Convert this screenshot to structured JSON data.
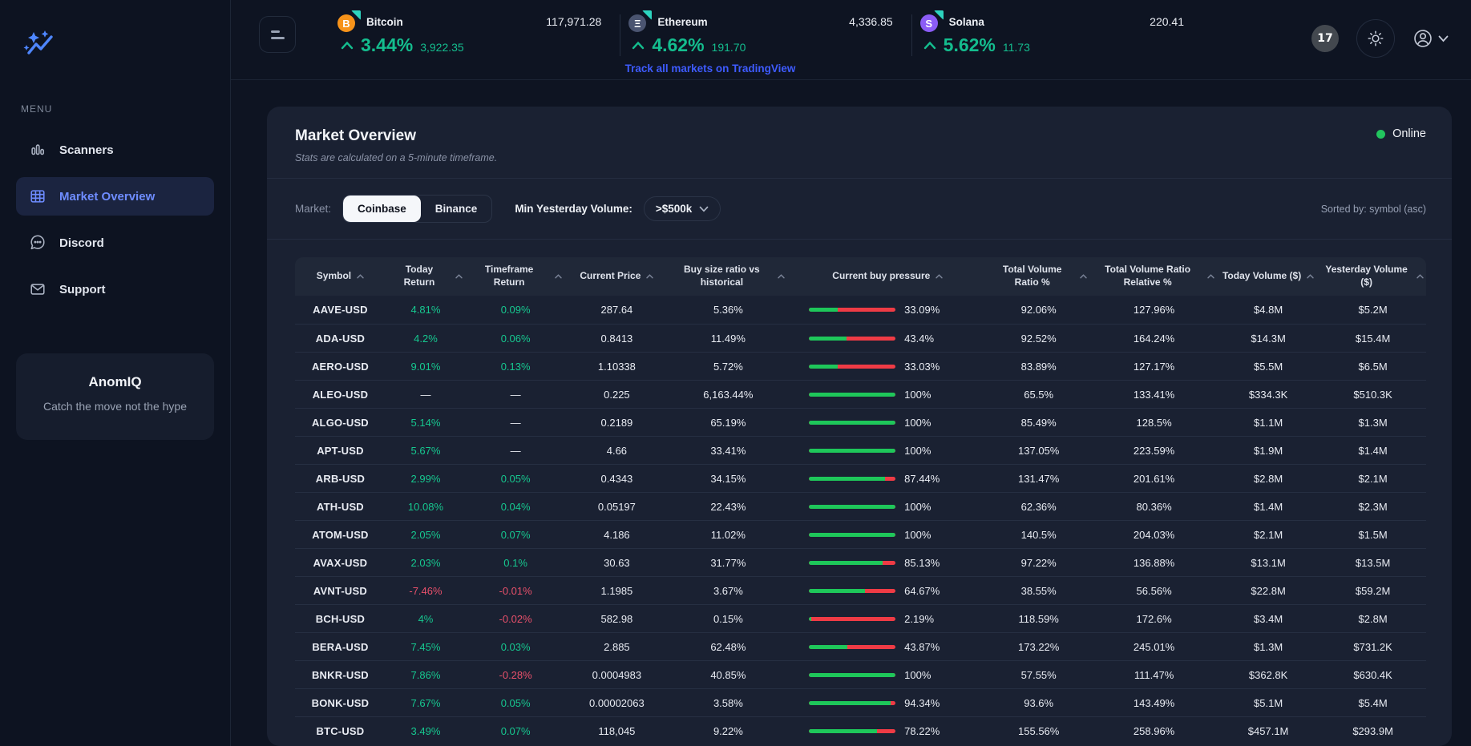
{
  "topbar": {
    "tickers": [
      {
        "name": "Bitcoin",
        "symbol_letter": "B",
        "icon_color": "#f7931a",
        "price": "117,971.28",
        "change_pct": "3.44%",
        "change_abs": "3,922.35"
      },
      {
        "name": "Ethereum",
        "symbol_letter": "Ξ",
        "icon_color": "#4a5470",
        "price": "4,336.85",
        "change_pct": "4.62%",
        "change_abs": "191.70"
      },
      {
        "name": "Solana",
        "symbol_letter": "S",
        "icon_color": "#8b5cf6",
        "price": "220.41",
        "change_pct": "5.62%",
        "change_abs": "11.73"
      }
    ],
    "link_label": "Track all markets on TradingView",
    "tv_badge_label": "17"
  },
  "sidebar": {
    "menu_label": "MENU",
    "items": [
      {
        "label": "Scanners",
        "icon": "bars-chart-icon",
        "active": false
      },
      {
        "label": "Market Overview",
        "icon": "grid-table-icon",
        "active": true
      },
      {
        "label": "Discord",
        "icon": "chat-bubble-icon",
        "active": false
      },
      {
        "label": "Support",
        "icon": "mail-icon",
        "active": false
      }
    ],
    "brand_card": {
      "title": "AnomIQ",
      "tagline": "Catch the move not the hype"
    }
  },
  "main": {
    "title": "Market Overview",
    "subtitle": "Stats are calculated on a 5-minute timeframe.",
    "status_label": "Online",
    "filters": {
      "market_label": "Market:",
      "market_options": [
        {
          "label": "Coinbase",
          "active": true
        },
        {
          "label": "Binance",
          "active": false
        }
      ],
      "volume_label": "Min Yesterday Volume:",
      "volume_value": ">$500k",
      "sorted_by": "Sorted by: symbol (asc)"
    },
    "table": {
      "columns": [
        "Symbol",
        "Today Return",
        "Timeframe Return",
        "Current Price",
        "Buy size ratio vs historical",
        "Current buy pressure",
        "Total Volume Ratio %",
        "Total Volume Ratio Relative %",
        "Today Volume ($)",
        "Yesterday Volume ($)"
      ],
      "rows": [
        {
          "symbol": "AAVE-USD",
          "today": "4.81%",
          "timeframe": "0.09%",
          "price": "287.64",
          "buy_size_ratio": "5.36%",
          "buy_pressure_pct": 33.09,
          "buy_pressure_label": "33.09%",
          "total_volume_ratio": "92.06%",
          "total_volume_ratio_relative": "127.96%",
          "today_volume": "$4.8M",
          "yesterday_volume": "$5.2M"
        },
        {
          "symbol": "ADA-USD",
          "today": "4.2%",
          "timeframe": "0.06%",
          "price": "0.8413",
          "buy_size_ratio": "11.49%",
          "buy_pressure_pct": 43.4,
          "buy_pressure_label": "43.4%",
          "total_volume_ratio": "92.52%",
          "total_volume_ratio_relative": "164.24%",
          "today_volume": "$14.3M",
          "yesterday_volume": "$15.4M"
        },
        {
          "symbol": "AERO-USD",
          "today": "9.01%",
          "timeframe": "0.13%",
          "price": "1.10338",
          "buy_size_ratio": "5.72%",
          "buy_pressure_pct": 33.03,
          "buy_pressure_label": "33.03%",
          "total_volume_ratio": "83.89%",
          "total_volume_ratio_relative": "127.17%",
          "today_volume": "$5.5M",
          "yesterday_volume": "$6.5M"
        },
        {
          "symbol": "ALEO-USD",
          "today": "—",
          "timeframe": "—",
          "price": "0.225",
          "buy_size_ratio": "6,163.44%",
          "buy_pressure_pct": 100,
          "buy_pressure_label": "100%",
          "total_volume_ratio": "65.5%",
          "total_volume_ratio_relative": "133.41%",
          "today_volume": "$334.3K",
          "yesterday_volume": "$510.3K"
        },
        {
          "symbol": "ALGO-USD",
          "today": "5.14%",
          "timeframe": "—",
          "price": "0.2189",
          "buy_size_ratio": "65.19%",
          "buy_pressure_pct": 100,
          "buy_pressure_label": "100%",
          "total_volume_ratio": "85.49%",
          "total_volume_ratio_relative": "128.5%",
          "today_volume": "$1.1M",
          "yesterday_volume": "$1.3M"
        },
        {
          "symbol": "APT-USD",
          "today": "5.67%",
          "timeframe": "—",
          "price": "4.66",
          "buy_size_ratio": "33.41%",
          "buy_pressure_pct": 100,
          "buy_pressure_label": "100%",
          "total_volume_ratio": "137.05%",
          "total_volume_ratio_relative": "223.59%",
          "today_volume": "$1.9M",
          "yesterday_volume": "$1.4M"
        },
        {
          "symbol": "ARB-USD",
          "today": "2.99%",
          "timeframe": "0.05%",
          "price": "0.4343",
          "buy_size_ratio": "34.15%",
          "buy_pressure_pct": 87.44,
          "buy_pressure_label": "87.44%",
          "total_volume_ratio": "131.47%",
          "total_volume_ratio_relative": "201.61%",
          "today_volume": "$2.8M",
          "yesterday_volume": "$2.1M"
        },
        {
          "symbol": "ATH-USD",
          "today": "10.08%",
          "timeframe": "0.04%",
          "price": "0.05197",
          "buy_size_ratio": "22.43%",
          "buy_pressure_pct": 100,
          "buy_pressure_label": "100%",
          "total_volume_ratio": "62.36%",
          "total_volume_ratio_relative": "80.36%",
          "today_volume": "$1.4M",
          "yesterday_volume": "$2.3M"
        },
        {
          "symbol": "ATOM-USD",
          "today": "2.05%",
          "timeframe": "0.07%",
          "price": "4.186",
          "buy_size_ratio": "11.02%",
          "buy_pressure_pct": 100,
          "buy_pressure_label": "100%",
          "total_volume_ratio": "140.5%",
          "total_volume_ratio_relative": "204.03%",
          "today_volume": "$2.1M",
          "yesterday_volume": "$1.5M"
        },
        {
          "symbol": "AVAX-USD",
          "today": "2.03%",
          "timeframe": "0.1%",
          "price": "30.63",
          "buy_size_ratio": "31.77%",
          "buy_pressure_pct": 85.13,
          "buy_pressure_label": "85.13%",
          "total_volume_ratio": "97.22%",
          "total_volume_ratio_relative": "136.88%",
          "today_volume": "$13.1M",
          "yesterday_volume": "$13.5M"
        },
        {
          "symbol": "AVNT-USD",
          "today": "-7.46%",
          "timeframe": "-0.01%",
          "price": "1.1985",
          "buy_size_ratio": "3.67%",
          "buy_pressure_pct": 64.67,
          "buy_pressure_label": "64.67%",
          "total_volume_ratio": "38.55%",
          "total_volume_ratio_relative": "56.56%",
          "today_volume": "$22.8M",
          "yesterday_volume": "$59.2M"
        },
        {
          "symbol": "BCH-USD",
          "today": "4%",
          "timeframe": "-0.02%",
          "price": "582.98",
          "buy_size_ratio": "0.15%",
          "buy_pressure_pct": 2.19,
          "buy_pressure_label": "2.19%",
          "total_volume_ratio": "118.59%",
          "total_volume_ratio_relative": "172.6%",
          "today_volume": "$3.4M",
          "yesterday_volume": "$2.8M"
        },
        {
          "symbol": "BERA-USD",
          "today": "7.45%",
          "timeframe": "0.03%",
          "price": "2.885",
          "buy_size_ratio": "62.48%",
          "buy_pressure_pct": 43.87,
          "buy_pressure_label": "43.87%",
          "total_volume_ratio": "173.22%",
          "total_volume_ratio_relative": "245.01%",
          "today_volume": "$1.3M",
          "yesterday_volume": "$731.2K"
        },
        {
          "symbol": "BNKR-USD",
          "today": "7.86%",
          "timeframe": "-0.28%",
          "price": "0.0004983",
          "buy_size_ratio": "40.85%",
          "buy_pressure_pct": 100,
          "buy_pressure_label": "100%",
          "total_volume_ratio": "57.55%",
          "total_volume_ratio_relative": "111.47%",
          "today_volume": "$362.8K",
          "yesterday_volume": "$630.4K"
        },
        {
          "symbol": "BONK-USD",
          "today": "7.67%",
          "timeframe": "0.05%",
          "price": "0.00002063",
          "buy_size_ratio": "3.58%",
          "buy_pressure_pct": 94.34,
          "buy_pressure_label": "94.34%",
          "total_volume_ratio": "93.6%",
          "total_volume_ratio_relative": "143.49%",
          "today_volume": "$5.1M",
          "yesterday_volume": "$5.4M"
        },
        {
          "symbol": "BTC-USD",
          "today": "3.49%",
          "timeframe": "0.07%",
          "price": "118,045",
          "buy_size_ratio": "9.22%",
          "buy_pressure_pct": 78.22,
          "buy_pressure_label": "78.22%",
          "total_volume_ratio": "155.56%",
          "total_volume_ratio_relative": "258.96%",
          "today_volume": "$457.1M",
          "yesterday_volume": "$293.9M"
        }
      ]
    },
    "colors": {
      "positive": "#16c78f",
      "negative": "#e8506b",
      "bar_green": "#1ec75a",
      "bar_red": "#ef3b45",
      "accent_blue": "#3e5bff",
      "online_green": "#22c55e"
    }
  }
}
